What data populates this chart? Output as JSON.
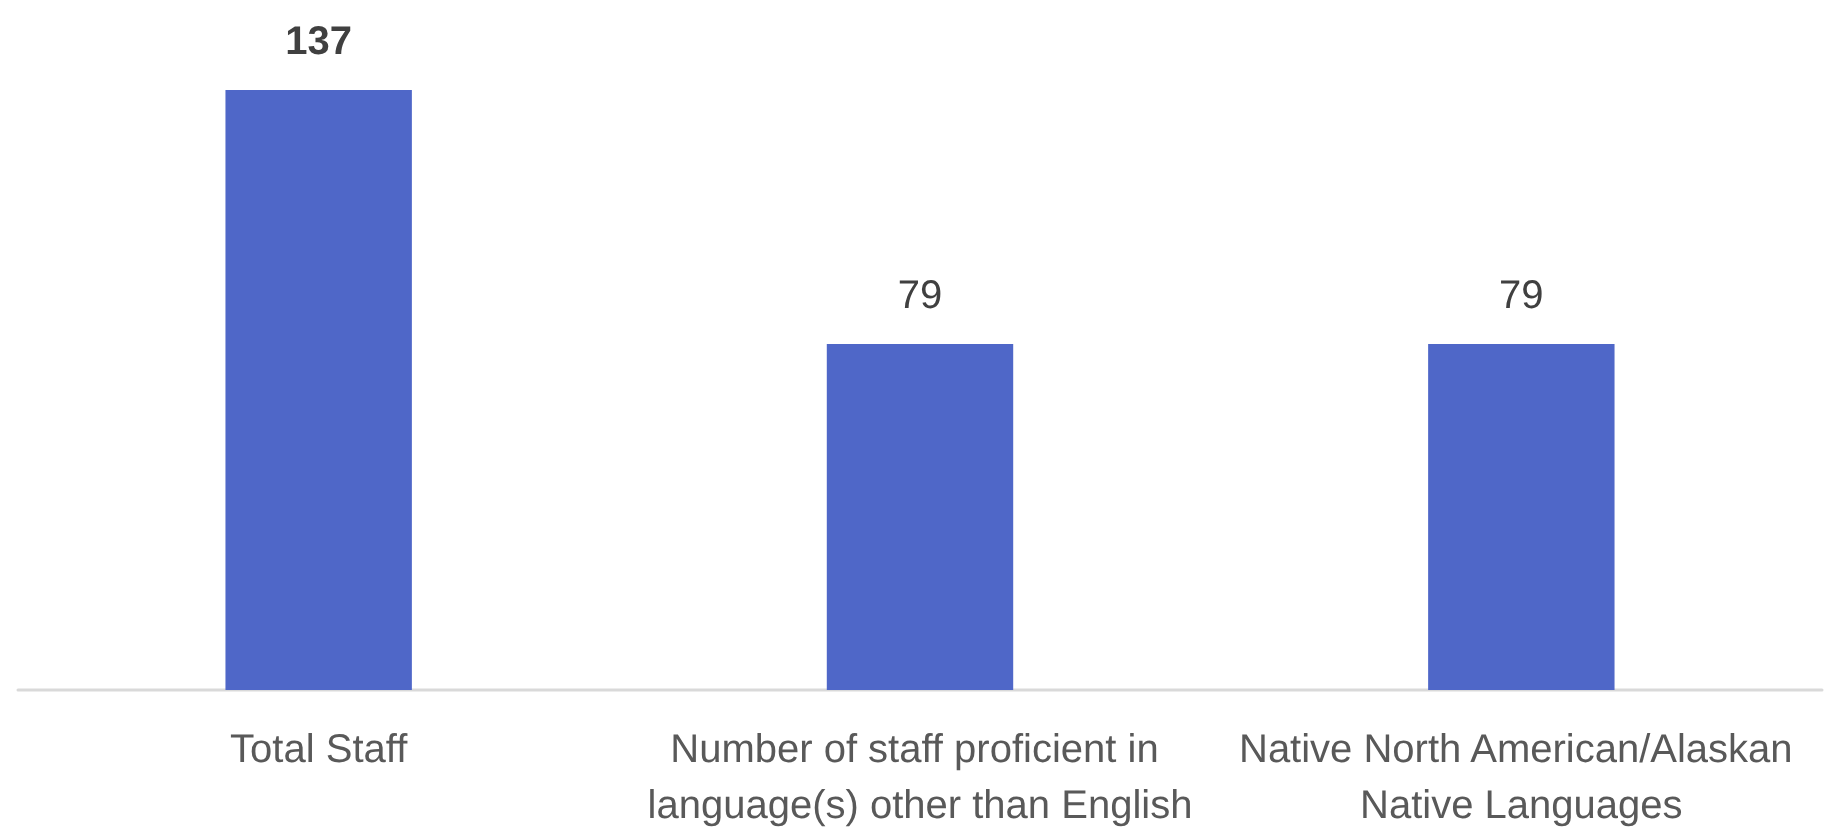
{
  "chart_data": {
    "type": "bar",
    "categories": [
      "Total Staff",
      "Number of staff proficient in language(s) other than English",
      "Native North American/Alaskan Native Languages"
    ],
    "values": [
      137,
      79,
      79
    ],
    "color": "#4f67c8",
    "data_labels": true
  }
}
